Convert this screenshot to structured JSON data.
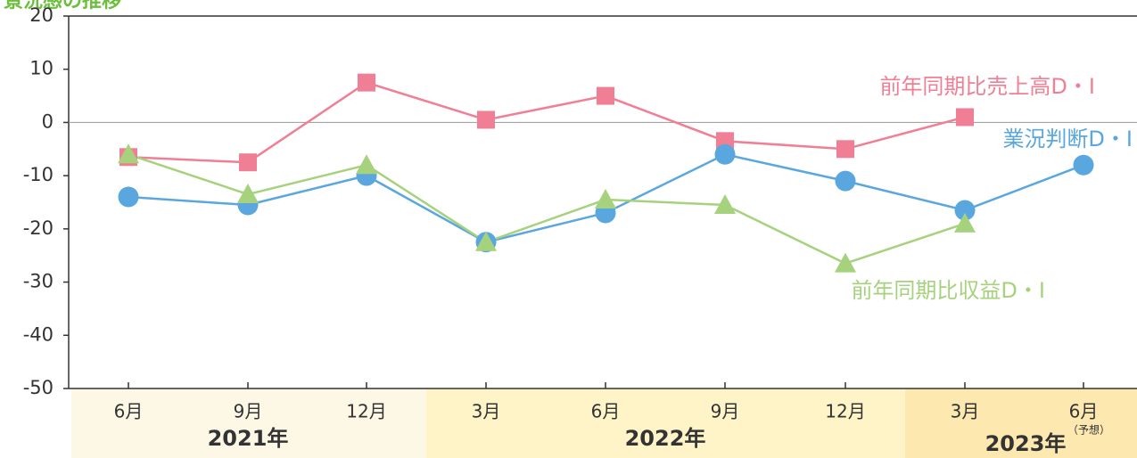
{
  "chart_data": {
    "type": "line",
    "title": "景況感の推移",
    "categories": [
      "6月",
      "9月",
      "12月",
      "3月",
      "6月",
      "9月",
      "12月",
      "3月",
      "6月"
    ],
    "category_note": {
      "index": 8,
      "text": "（予想）"
    },
    "year_groups": [
      {
        "label": "2021年",
        "from": 0,
        "to": 2
      },
      {
        "label": "2022年",
        "from": 3,
        "to": 6
      },
      {
        "label": "2023年",
        "from": 7,
        "to": 8
      }
    ],
    "ylim": [
      -50,
      20
    ],
    "yticks": [
      20,
      10,
      0,
      -10,
      -20,
      -30,
      -40,
      -50
    ],
    "series": [
      {
        "name": "前年同期比売上高D・I",
        "color": "#f07f95",
        "marker": "square",
        "values": [
          -6.5,
          -7.5,
          7.5,
          0.5,
          5,
          -3.5,
          -5,
          1,
          null
        ]
      },
      {
        "name": "業況判断D・I",
        "color": "#5aa7e0",
        "marker": "circle",
        "values": [
          -14,
          -15.5,
          -10,
          -22.5,
          -17,
          -6,
          -11,
          -16.5,
          -8
        ]
      },
      {
        "name": "前年同期比収益D・I",
        "color": "#a6d27d",
        "marker": "triangle",
        "values": [
          -6,
          -13.5,
          -8,
          -22.5,
          -14.5,
          -15.5,
          -26.5,
          -19,
          null
        ]
      }
    ],
    "zero_line": true,
    "colors": {
      "axis": "#333333",
      "zero": "#999999",
      "title": "#6cbf3c",
      "band_2021": "#fdf8e6",
      "band_2022": "#fff4c8",
      "band_2023": "#fde8b0"
    }
  }
}
